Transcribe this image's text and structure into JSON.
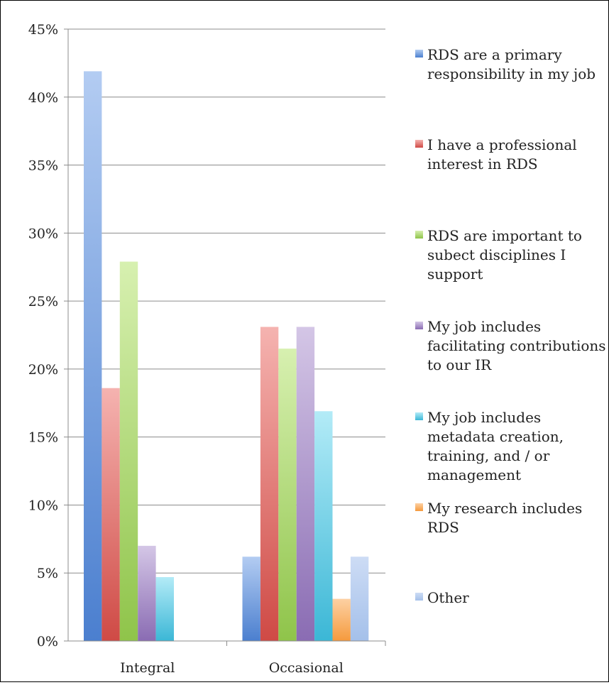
{
  "chart_data": {
    "type": "bar",
    "categories": [
      "Integral",
      "Occasional"
    ],
    "yticks": [
      "0%",
      "5%",
      "10%",
      "15%",
      "20%",
      "25%",
      "30%",
      "35%",
      "40%",
      "45%"
    ],
    "ylim": [
      0,
      45
    ],
    "grid": true,
    "legend_position": "right",
    "series": [
      {
        "name": "RDS are a primary responsibility in my job",
        "legend_lines": [
          "RDS are a primary",
          "responsibility in my job"
        ],
        "values": [
          41.9,
          6.2
        ],
        "color_light": "#b3ccf2",
        "color_dark": "#4b7fcf"
      },
      {
        "name": "I have a professional interest in RDS",
        "legend_lines": [
          "I have a professional",
          "interest in RDS"
        ],
        "values": [
          18.6,
          23.1
        ],
        "color_light": "#f5b3b0",
        "color_dark": "#cf4a45"
      },
      {
        "name": "RDS are important to subect disciplines I support",
        "legend_lines": [
          "RDS are important to",
          "subect disciplines I",
          "support"
        ],
        "values": [
          27.9,
          21.5
        ],
        "color_light": "#d7f0b0",
        "color_dark": "#8fc44a"
      },
      {
        "name": "My job includes facilitating contributions to our IR",
        "legend_lines": [
          "My job includes",
          "facilitating contributions",
          "to our IR"
        ],
        "values": [
          7.0,
          23.1
        ],
        "color_light": "#d4c6e6",
        "color_dark": "#8a6cb3"
      },
      {
        "name": "My job includes metadata creation, training, and / or management",
        "legend_lines": [
          "My job includes",
          "metadata creation,",
          "training, and / or",
          "management"
        ],
        "values": [
          4.7,
          16.9
        ],
        "color_light": "#b3ebf7",
        "color_dark": "#3bb7d6"
      },
      {
        "name": "My research includes RDS",
        "legend_lines": [
          "My research includes",
          "RDS"
        ],
        "values": [
          0,
          3.1
        ],
        "color_light": "#fdd1a3",
        "color_dark": "#f59a3d"
      },
      {
        "name": "Other",
        "legend_lines": [
          "Other"
        ],
        "values": [
          0,
          6.2
        ],
        "color_light": "#cddcf5",
        "color_dark": "#a4c0ea"
      }
    ]
  }
}
